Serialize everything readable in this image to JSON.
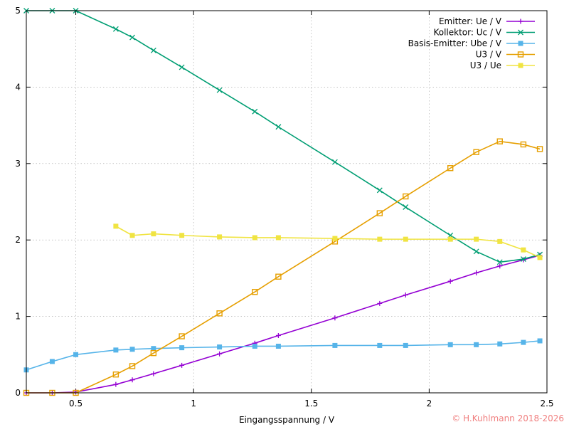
{
  "chart_data": {
    "type": "line",
    "xlabel": "Eingangsspannung / V",
    "ylabel": "",
    "xlim": [
      0.29,
      2.5
    ],
    "ylim": [
      0,
      5
    ],
    "xticks": [
      0.5,
      1,
      1.5,
      2,
      2.5
    ],
    "yticks": [
      0,
      1,
      2,
      3,
      4,
      5
    ],
    "grid": true,
    "legend_position": "top-right",
    "series": [
      {
        "name": "Emitter: Ue / V",
        "color": "#9400d3",
        "marker": "plus",
        "x": [
          0.29,
          0.4,
          0.5,
          0.67,
          0.74,
          0.83,
          0.95,
          1.11,
          1.26,
          1.36,
          1.6,
          1.79,
          1.9,
          2.09,
          2.2,
          2.3,
          2.4,
          2.47
        ],
        "y": [
          0.0,
          0.0,
          0.01,
          0.11,
          0.17,
          0.25,
          0.36,
          0.51,
          0.65,
          0.75,
          0.98,
          1.17,
          1.28,
          1.46,
          1.57,
          1.66,
          1.74,
          1.8
        ]
      },
      {
        "name": "Kollektor: Uc / V",
        "color": "#009e73",
        "marker": "cross",
        "x": [
          0.29,
          0.4,
          0.5,
          0.67,
          0.74,
          0.83,
          0.95,
          1.11,
          1.26,
          1.36,
          1.6,
          1.79,
          1.9,
          2.09,
          2.2,
          2.3,
          2.4,
          2.47
        ],
        "y": [
          5.0,
          5.0,
          5.0,
          4.76,
          4.65,
          4.48,
          4.26,
          3.96,
          3.68,
          3.48,
          3.02,
          2.65,
          2.43,
          2.06,
          1.85,
          1.71,
          1.75,
          1.81
        ]
      },
      {
        "name": "Basis-Emitter: Ube / V",
        "color": "#56b4e9",
        "marker": "square-filled",
        "x": [
          0.29,
          0.4,
          0.5,
          0.67,
          0.74,
          0.83,
          0.95,
          1.11,
          1.26,
          1.36,
          1.6,
          1.79,
          1.9,
          2.09,
          2.2,
          2.3,
          2.4,
          2.47
        ],
        "y": [
          0.3,
          0.41,
          0.5,
          0.56,
          0.57,
          0.58,
          0.59,
          0.6,
          0.61,
          0.61,
          0.62,
          0.62,
          0.62,
          0.63,
          0.63,
          0.64,
          0.66,
          0.68
        ]
      },
      {
        "name": "U3 / V",
        "color": "#e69f00",
        "marker": "square-open",
        "x": [
          0.29,
          0.4,
          0.5,
          0.67,
          0.74,
          0.83,
          0.95,
          1.11,
          1.26,
          1.36,
          1.6,
          1.79,
          1.9,
          2.09,
          2.2,
          2.3,
          2.4,
          2.47
        ],
        "y": [
          0.0,
          0.0,
          0.0,
          0.24,
          0.35,
          0.52,
          0.74,
          1.04,
          1.32,
          1.52,
          1.98,
          2.35,
          2.57,
          2.94,
          3.15,
          3.29,
          3.25,
          3.19
        ]
      },
      {
        "name": "U3 / Ue",
        "color": "#f0e442",
        "marker": "square-filled",
        "x": [
          0.67,
          0.74,
          0.83,
          0.95,
          1.11,
          1.26,
          1.36,
          1.6,
          1.79,
          1.9,
          2.09,
          2.2,
          2.3,
          2.4,
          2.47
        ],
        "y": [
          2.18,
          2.06,
          2.08,
          2.06,
          2.04,
          2.03,
          2.03,
          2.02,
          2.01,
          2.01,
          2.01,
          2.01,
          1.98,
          1.87,
          1.77
        ]
      }
    ]
  },
  "copyright": "© H.Kuhlmann 2018-2026",
  "copyright_color": "#f08080"
}
